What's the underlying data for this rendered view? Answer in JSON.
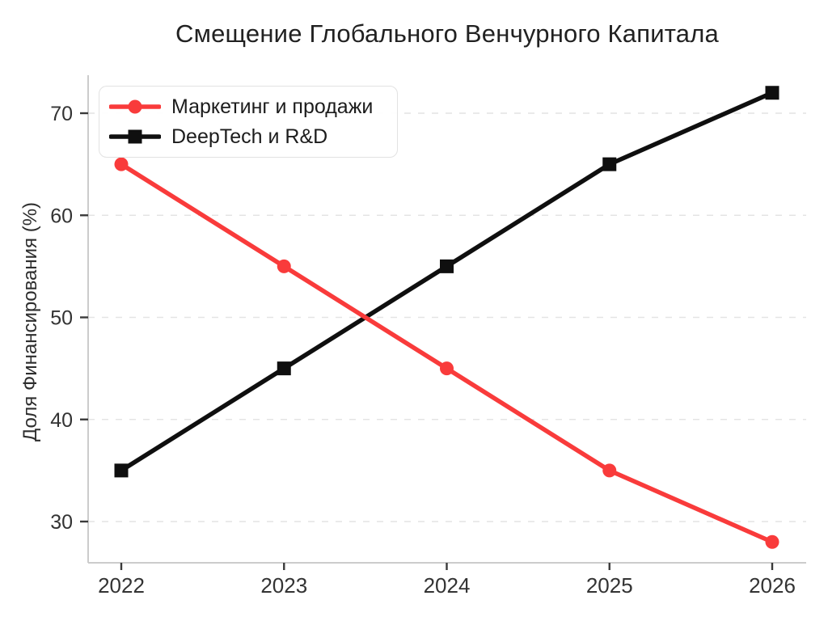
{
  "chart_data": {
    "type": "line",
    "title": "Смещение Глобального Венчурного Капитала",
    "ylabel": "Доля Финансирования (%)",
    "xlabel": "",
    "x": [
      2022,
      2023,
      2024,
      2025,
      2026
    ],
    "series": [
      {
        "id": "marketing-sales",
        "name": "Маркетинг и продажи",
        "values": [
          65,
          55,
          45,
          35,
          28
        ],
        "color": "#f93b3b",
        "marker": "circle"
      },
      {
        "id": "deeptech-rd",
        "name": "DeepTech и R&D",
        "values": [
          35,
          45,
          55,
          65,
          72
        ],
        "color": "#0f0f0f",
        "marker": "square"
      }
    ],
    "yticks": [
      30,
      40,
      50,
      60,
      70
    ],
    "ylim": [
      26,
      74
    ],
    "grid": "horizontal-dashed",
    "legend_position": "upper-left",
    "colors": {
      "gridline": "#e4e4e4",
      "spine": "#cccccc",
      "tick": "#3a3a3a",
      "tick_label": "#333333",
      "title_text": "#212121",
      "background": "#ffffff"
    }
  }
}
